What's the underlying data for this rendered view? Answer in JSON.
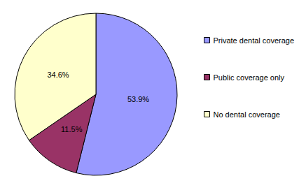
{
  "chart_data": {
    "type": "pie",
    "categories": [
      "Private dental coverage",
      "Public coverage only",
      "No dental coverage"
    ],
    "values": [
      53.9,
      11.5,
      34.6
    ],
    "value_labels": [
      "53.9%",
      "11.5%",
      "34.6%"
    ],
    "colors": [
      "#9999ff",
      "#993366",
      "#ffffcc"
    ],
    "data_labels": true,
    "legend": "right"
  }
}
